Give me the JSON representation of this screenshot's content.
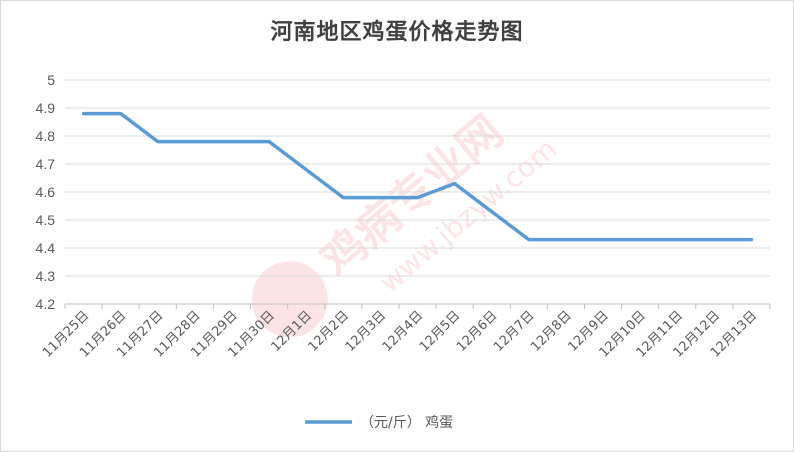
{
  "chart_data": {
    "type": "line",
    "title": "河南地区鸡蛋价格走势图",
    "xlabel": "",
    "ylabel": "",
    "ylim": [
      4.2,
      5.0
    ],
    "yticks": [
      "4.2",
      "4.3",
      "4.4",
      "4.5",
      "4.6",
      "4.7",
      "4.8",
      "4.9",
      "5"
    ],
    "categories": [
      "11月25日",
      "11月26日",
      "11月27日",
      "11月28日",
      "11月29日",
      "11月30日",
      "12月1日",
      "12月2日",
      "12月3日",
      "12月4日",
      "12月5日",
      "12月6日",
      "12月7日",
      "12月8日",
      "12月9日",
      "12月10日",
      "12月11日",
      "12月12日",
      "12月13日"
    ],
    "series": [
      {
        "name": "（元/斤） 鸡蛋",
        "color": "#5b9bd5",
        "values": [
          4.88,
          4.88,
          4.78,
          4.78,
          4.78,
          4.78,
          4.68,
          4.58,
          4.58,
          4.58,
          4.63,
          4.53,
          4.43,
          4.43,
          4.43,
          4.43,
          4.43,
          4.43,
          4.43
        ]
      }
    ],
    "grid": true,
    "legend_position": "bottom"
  },
  "watermark": {
    "text": "鸡病专业网",
    "url": "www.jbzyw.com"
  }
}
